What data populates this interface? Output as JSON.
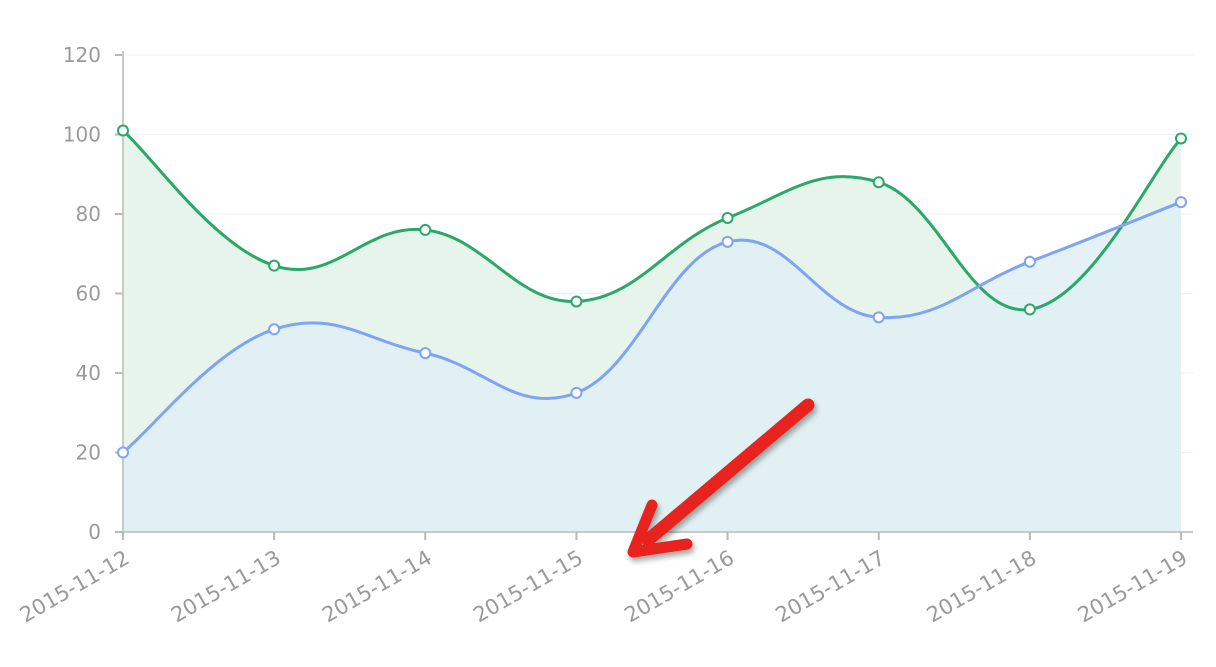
{
  "chart_data": {
    "type": "area",
    "x": [
      "2015-11-12",
      "2015-11-13",
      "2015-11-14",
      "2015-11-15",
      "2015-11-16",
      "2015-11-17",
      "2015-11-18",
      "2015-11-19"
    ],
    "series": [
      {
        "values": [
          101,
          67,
          76,
          58,
          79,
          88,
          56,
          99
        ],
        "color": "#2aa86a",
        "fill": "#e6f4ec"
      },
      {
        "values": [
          20,
          51,
          45,
          35,
          73,
          54,
          68,
          83
        ],
        "color": "#7fa3f5",
        "fill": "#dfeef3"
      }
    ],
    "yticks": [
      "0",
      "20",
      "40",
      "60",
      "80",
      "100",
      "120"
    ],
    "ylim": [
      0,
      120
    ],
    "grid": true,
    "smooth": true,
    "markers": "hollow-circle",
    "annotation": {
      "type": "arrow",
      "color": "#e8221b"
    }
  }
}
